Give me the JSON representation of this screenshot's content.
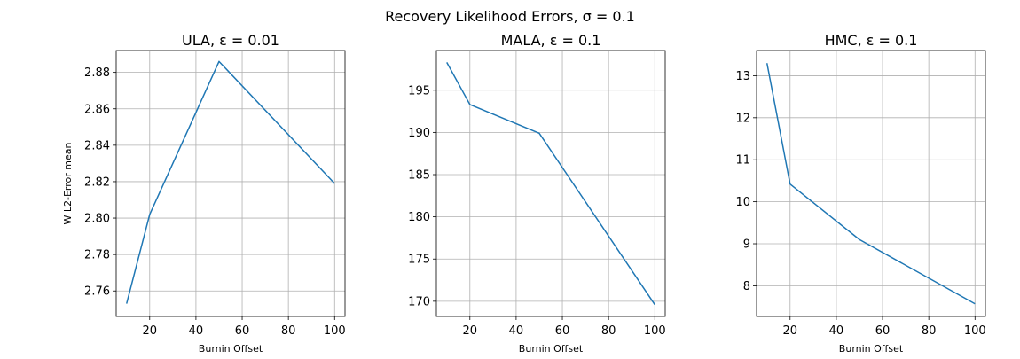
{
  "figure": {
    "suptitle": "Recovery Likelihood Errors, σ = 0.1"
  },
  "colors": {
    "line": "#1f77b4",
    "grid": "#b0b0b0",
    "axes": "#000000"
  },
  "chart_data": [
    {
      "type": "line",
      "title": "ULA, ε = 0.01",
      "xlabel": "Burnin Offset",
      "ylabel": "W L2-Error mean",
      "xlim": [
        5.5,
        104.5
      ],
      "ylim": [
        2.746,
        2.892
      ],
      "xticks": [
        20,
        40,
        60,
        80,
        100
      ],
      "yticks": [
        2.76,
        2.78,
        2.8,
        2.82,
        2.84,
        2.86,
        2.88
      ],
      "ytick_labels": [
        "2.76",
        "2.78",
        "2.80",
        "2.82",
        "2.84",
        "2.86",
        "2.88"
      ],
      "grid": true,
      "series": [
        {
          "x": [
            10,
            20,
            50,
            100
          ],
          "y": [
            2.753,
            2.802,
            2.886,
            2.819
          ]
        }
      ]
    },
    {
      "type": "line",
      "title": "MALA, ε = 0.1",
      "xlabel": "Burnin Offset",
      "ylabel": "",
      "xlim": [
        5.5,
        104.5
      ],
      "ylim": [
        168.2,
        199.7
      ],
      "xticks": [
        20,
        40,
        60,
        80,
        100
      ],
      "yticks": [
        170,
        175,
        180,
        185,
        190,
        195
      ],
      "ytick_labels": [
        "170",
        "175",
        "180",
        "185",
        "190",
        "195"
      ],
      "grid": true,
      "series": [
        {
          "x": [
            10,
            20,
            50,
            100
          ],
          "y": [
            198.3,
            193.3,
            189.9,
            169.6
          ]
        }
      ]
    },
    {
      "type": "line",
      "title": "HMC, ε = 0.1",
      "xlabel": "Burnin Offset",
      "ylabel": "",
      "xlim": [
        5.5,
        104.5
      ],
      "ylim": [
        7.27,
        13.6
      ],
      "xticks": [
        20,
        40,
        60,
        80,
        100
      ],
      "yticks": [
        8,
        9,
        10,
        11,
        12,
        13
      ],
      "ytick_labels": [
        "8",
        "9",
        "10",
        "11",
        "12",
        "13"
      ],
      "grid": true,
      "series": [
        {
          "x": [
            10,
            20,
            50,
            100
          ],
          "y": [
            13.3,
            10.42,
            9.1,
            7.57
          ]
        }
      ]
    }
  ]
}
